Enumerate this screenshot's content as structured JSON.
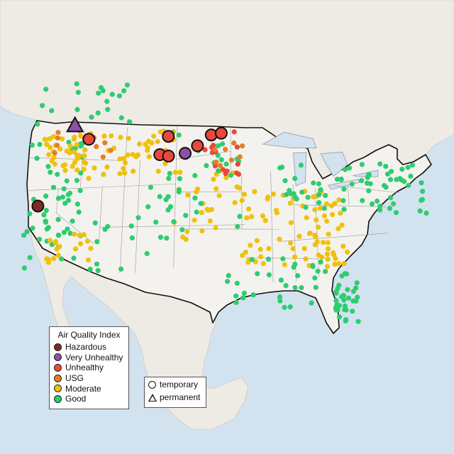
{
  "colors": {
    "water": "#d3e2ef",
    "land": "#eeeae4",
    "us_land": "#f4f2ee",
    "border": "#111111",
    "state_line": "#9a9a9a"
  },
  "legend": {
    "title": "Air Quality Index",
    "categories": [
      {
        "label": "Hazardous",
        "color": "#7e2b25"
      },
      {
        "label": "Very Unhealthy",
        "color": "#8e4fa8"
      },
      {
        "label": "Unhealthy",
        "color": "#e8483e"
      },
      {
        "label": "USG",
        "color": "#e67e22"
      },
      {
        "label": "Moderate",
        "color": "#efc10e"
      },
      {
        "label": "Good",
        "color": "#2ecc71"
      }
    ]
  },
  "type_legend": {
    "items": [
      {
        "label": "temporary",
        "shape": "circle"
      },
      {
        "label": "permanent",
        "shape": "triangle"
      }
    ]
  },
  "sensor_network": {
    "seed": 7,
    "clusters": [
      {
        "cat": 5,
        "n": 55,
        "lon": [
          -124.2,
          -116.5
        ],
        "lat": [
          32.5,
          48.8
        ]
      },
      {
        "cat": 4,
        "n": 40,
        "lon": [
          -122.5,
          -116.0
        ],
        "lat": [
          44.0,
          48.5
        ]
      },
      {
        "cat": 4,
        "n": 18,
        "lon": [
          -121.0,
          -115.0
        ],
        "lat": [
          33.0,
          36.5
        ]
      },
      {
        "cat": 4,
        "n": 40,
        "lon": [
          -116.0,
          -104.0
        ],
        "lat": [
          43.0,
          48.5
        ]
      },
      {
        "cat": 4,
        "n": 80,
        "lon": [
          -95.0,
          -81.0
        ],
        "lat": [
          32.0,
          41.5
        ]
      },
      {
        "cat": 4,
        "n": 30,
        "lon": [
          -104.5,
          -94.0
        ],
        "lat": [
          35.0,
          45.0
        ]
      },
      {
        "cat": 5,
        "n": 70,
        "lon": [
          -90.0,
          -70.0
        ],
        "lat": [
          39.0,
          45.0
        ]
      },
      {
        "cat": 5,
        "n": 40,
        "lon": [
          -98.0,
          -80.0
        ],
        "lat": [
          27.0,
          33.0
        ]
      },
      {
        "cat": 5,
        "n": 25,
        "lon": [
          -83.0,
          -80.0
        ],
        "lat": [
          25.5,
          30.0
        ]
      },
      {
        "cat": 5,
        "n": 30,
        "lon": [
          -105.0,
          -95.0
        ],
        "lat": [
          36.0,
          49.0
        ]
      },
      {
        "cat": 5,
        "n": 20,
        "lon": [
          -115.0,
          -104.0
        ],
        "lat": [
          31.5,
          42.0
        ]
      },
      {
        "cat": 3,
        "n": 12,
        "lon": [
          -121.0,
          -113.0
        ],
        "lat": [
          45.5,
          49.5
        ]
      },
      {
        "cat": 2,
        "n": 15,
        "lon": [
          -100.5,
          -95.0
        ],
        "lat": [
          43.0,
          48.5
        ]
      },
      {
        "cat": 3,
        "n": 8,
        "lon": [
          -99.0,
          -94.5
        ],
        "lat": [
          44.0,
          47.5
        ]
      },
      {
        "cat": 5,
        "n": 20,
        "lon": [
          -125.0,
          -110.0
        ],
        "lat": [
          49.5,
          55.0
        ]
      }
    ]
  },
  "highlights": [
    {
      "cat": 0,
      "lon": -122.6,
      "lat": 40.0,
      "shape": "circle"
    },
    {
      "cat": 1,
      "lon": -118.4,
      "lat": 49.6,
      "shape": "triangle"
    },
    {
      "cat": 2,
      "lon": -116.3,
      "lat": 47.8,
      "shape": "circle"
    },
    {
      "cat": 2,
      "lon": -105.2,
      "lat": 47.8,
      "shape": "circle"
    },
    {
      "cat": 2,
      "lon": -99.2,
      "lat": 47.9,
      "shape": "circle"
    },
    {
      "cat": 2,
      "lon": -97.8,
      "lat": 48.1,
      "shape": "circle"
    },
    {
      "cat": 2,
      "lon": -101.1,
      "lat": 46.6,
      "shape": "circle"
    },
    {
      "cat": 2,
      "lon": -106.3,
      "lat": 45.6,
      "shape": "circle"
    },
    {
      "cat": 2,
      "lon": -105.1,
      "lat": 45.4,
      "shape": "circle"
    },
    {
      "cat": 1,
      "lon": -102.8,
      "lat": 45.7,
      "shape": "circle"
    }
  ]
}
